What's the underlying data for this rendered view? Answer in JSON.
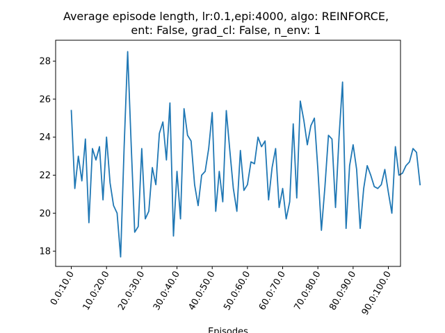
{
  "chart_data": {
    "type": "line",
    "title_lines": [
      "Average episode length, lr:0.1,epi:4000, algo: REINFORCE,",
      "ent: False, grad_cl: False, n_env: 1"
    ],
    "xlabel": "Episodes",
    "ylabel": "",
    "grid": false,
    "legend": "none",
    "xlim": [
      -4.45,
      93.45
    ],
    "ylim": [
      17.2,
      29.1
    ],
    "yticks": [
      18,
      20,
      22,
      24,
      26,
      28
    ],
    "xticks": [
      0,
      10,
      20,
      30,
      40,
      50,
      60,
      70,
      80,
      90
    ],
    "xtick_labels": [
      "0.0:10.0",
      "10.0:20.0",
      "20.0:30.0",
      "30.0:40.0",
      "40.0:50.0",
      "50.0:60.0",
      "60.0:70.0",
      "70.0:80.0",
      "80.0:90.0",
      "90.0:100.0"
    ],
    "series": [
      {
        "color": "#1f77b4",
        "values": [
          25.4,
          21.3,
          23.0,
          21.7,
          23.9,
          19.5,
          23.4,
          22.8,
          23.5,
          20.7,
          24.0,
          21.6,
          20.4,
          20.0,
          17.7,
          23.5,
          28.5,
          23.6,
          19.0,
          19.3,
          23.4,
          19.7,
          20.1,
          22.4,
          21.5,
          24.2,
          24.8,
          22.8,
          25.8,
          18.8,
          22.2,
          19.7,
          25.5,
          24.1,
          23.8,
          21.5,
          20.4,
          22.0,
          22.2,
          23.4,
          25.3,
          20.1,
          22.2,
          20.6,
          25.4,
          23.3,
          21.3,
          20.1,
          23.3,
          21.2,
          21.5,
          22.7,
          22.6,
          24.0,
          23.5,
          23.8,
          20.7,
          22.4,
          23.4,
          20.3,
          21.3,
          19.7,
          20.6,
          24.7,
          20.8,
          25.9,
          24.9,
          23.6,
          24.6,
          25.0,
          22.3,
          19.1,
          21.4,
          24.1,
          23.9,
          20.3,
          24.0,
          26.9,
          19.2,
          22.5,
          23.6,
          22.3,
          19.2,
          21.3,
          22.5,
          22.0,
          21.4,
          21.3,
          21.5,
          22.3,
          21.1,
          20.0,
          23.5,
          22.0,
          22.1,
          22.5,
          22.7,
          23.4,
          23.2,
          21.5
        ]
      }
    ]
  }
}
